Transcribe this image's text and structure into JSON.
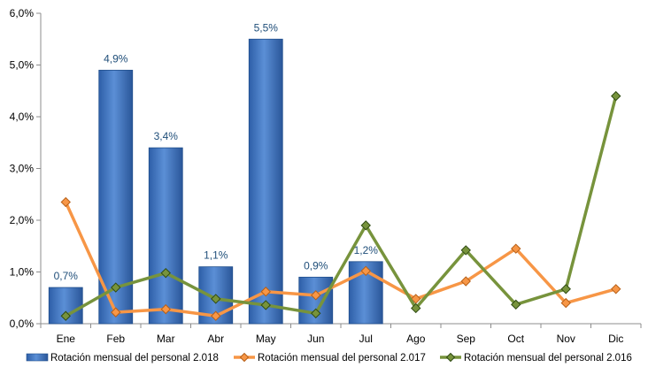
{
  "chart_data": {
    "type": "bar",
    "title": "",
    "xlabel": "",
    "ylabel": "",
    "categories": [
      "Ene",
      "Feb",
      "Mar",
      "Abr",
      "May",
      "Jun",
      "Jul",
      "Ago",
      "Sep",
      "Oct",
      "Nov",
      "Dic"
    ],
    "ylim": [
      0,
      6
    ],
    "yticks": [
      "0,0%",
      "1,0%",
      "2,0%",
      "3,0%",
      "4,0%",
      "5,0%",
      "6,0%"
    ],
    "grid": false,
    "legend_position": "bottom",
    "series": [
      {
        "name": "Rotación mensual del personal 2.018",
        "type": "bar",
        "color": "#4A7EC9",
        "values": [
          0.7,
          4.9,
          3.4,
          1.1,
          5.5,
          0.9,
          1.2,
          null,
          null,
          null,
          null,
          null
        ],
        "labels": [
          "0,7%",
          "4,9%",
          "3,4%",
          "1,1%",
          "5,5%",
          "0,9%",
          "1,2%",
          "",
          "",
          "",
          "",
          ""
        ]
      },
      {
        "name": "Rotación mensual del personal 2.017",
        "type": "line",
        "color": "#F79646",
        "values": [
          2.35,
          0.22,
          0.28,
          0.15,
          0.62,
          0.55,
          1.02,
          0.48,
          0.82,
          1.45,
          0.4,
          0.67
        ]
      },
      {
        "name": "Rotación mensual del personal 2.016",
        "type": "line",
        "color": "#77933C",
        "values": [
          0.15,
          0.7,
          0.98,
          0.48,
          0.36,
          0.2,
          1.9,
          0.3,
          1.42,
          0.37,
          0.67,
          4.4
        ]
      }
    ]
  }
}
